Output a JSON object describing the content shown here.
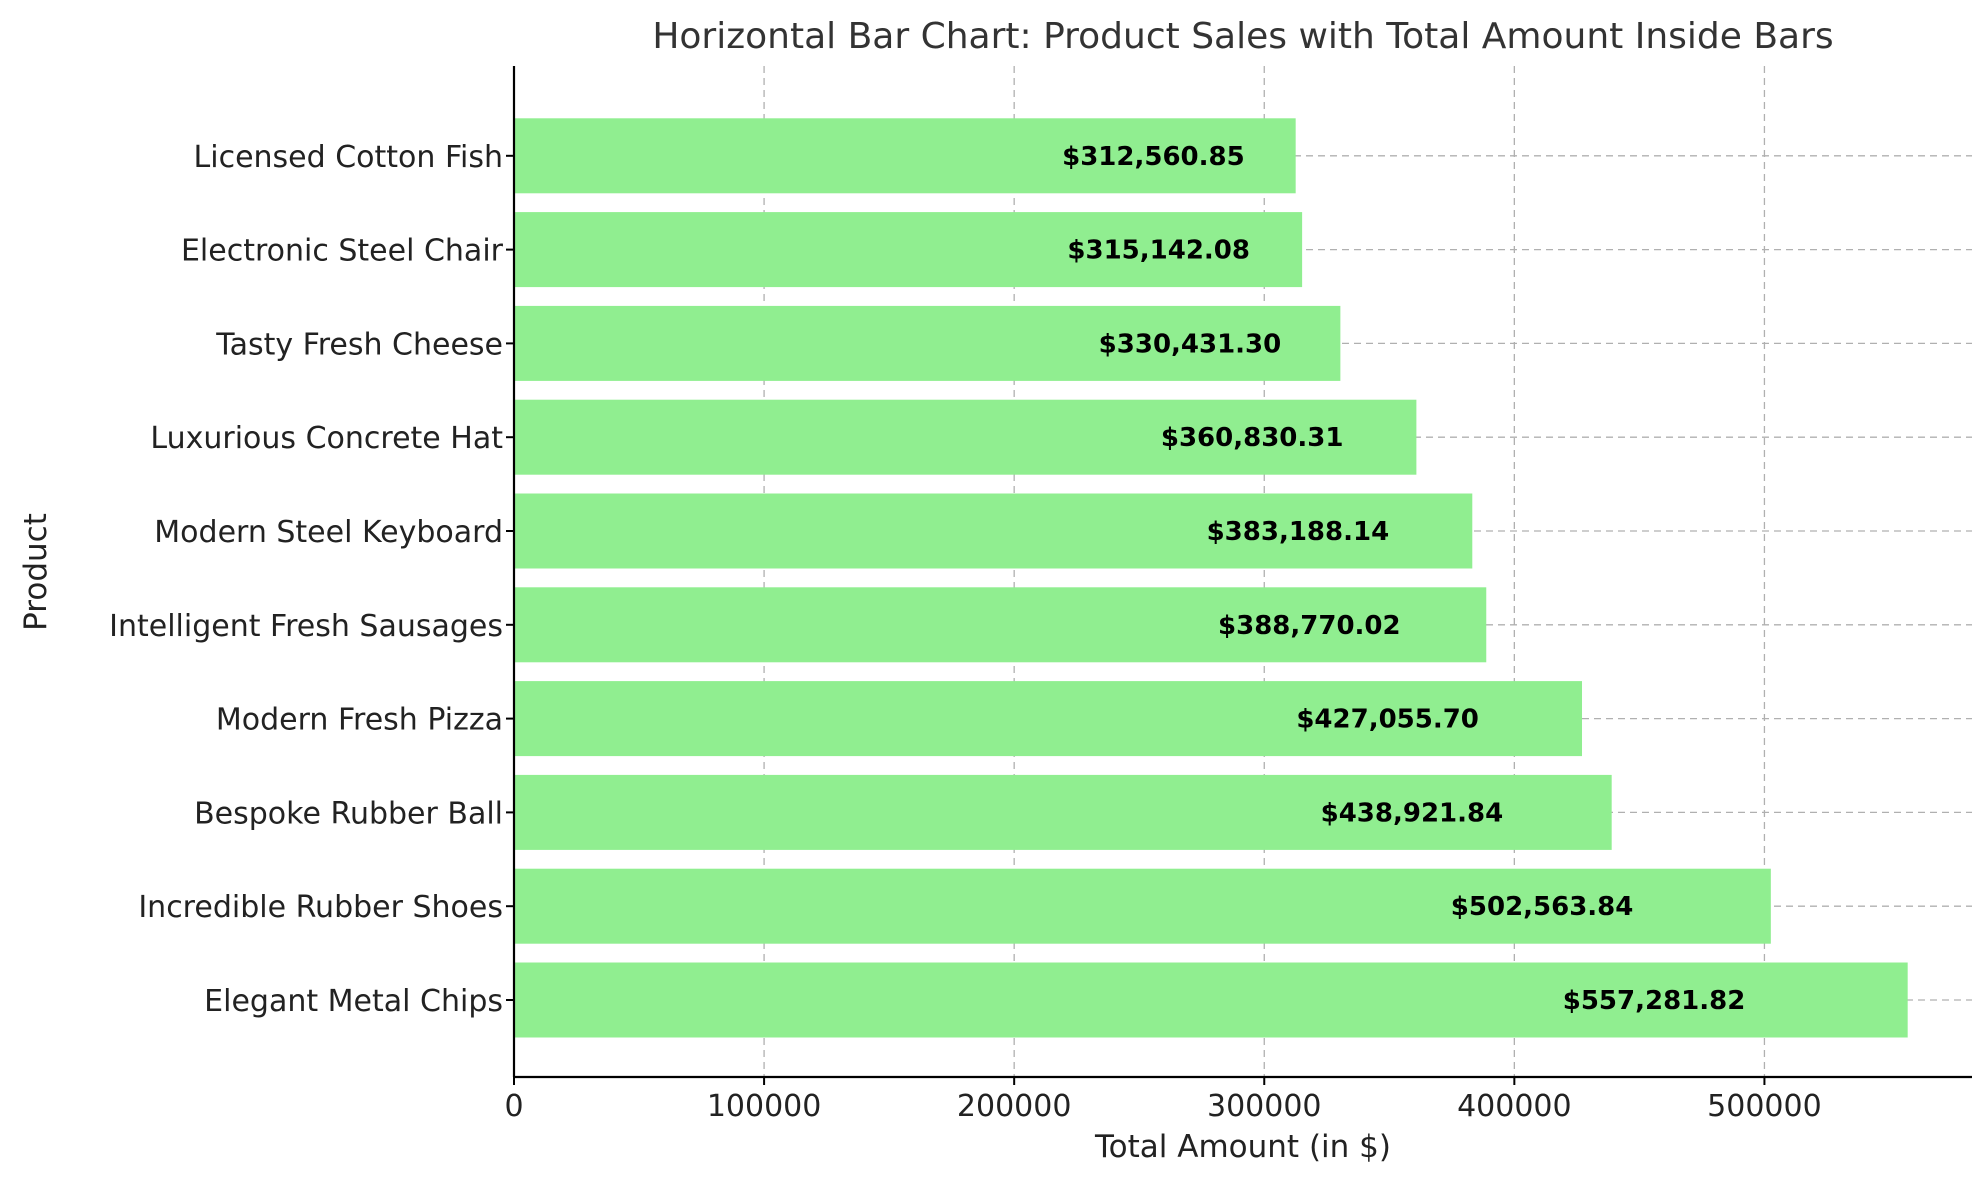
{
  "colors": {
    "bar": "#90ee90",
    "title": "#333333",
    "grid": "#b0b0b0",
    "axis": "#000000",
    "bar_label": "#000000"
  },
  "chart_data": {
    "type": "bar",
    "orientation": "horizontal",
    "title": "Horizontal Bar Chart: Product Sales with Total Amount Inside Bars",
    "xlabel": "Total Amount (in $)",
    "ylabel": "Product",
    "xlim": [
      0,
      583000
    ],
    "xticks": [
      0,
      100000,
      200000,
      300000,
      400000,
      500000
    ],
    "xtick_labels": [
      "0",
      "100000",
      "200000",
      "300000",
      "400000",
      "500000"
    ],
    "grid": true,
    "categories": [
      "Elegant Metal Chips",
      "Incredible Rubber Shoes",
      "Bespoke Rubber Ball",
      "Modern Fresh Pizza",
      "Intelligent Fresh Sausages",
      "Modern Steel Keyboard",
      "Luxurious Concrete Hat",
      "Tasty Fresh Cheese",
      "Electronic Steel Chair",
      "Licensed Cotton Fish"
    ],
    "values": [
      557281.82,
      502563.84,
      438921.84,
      427055.7,
      388770.02,
      383188.14,
      360830.31,
      330431.3,
      315142.08,
      312560.85
    ],
    "value_labels": [
      "$557,281.82",
      "$502,563.84",
      "$438,921.84",
      "$427,055.70",
      "$388,770.02",
      "$383,188.14",
      "$360,830.31",
      "$330,431.30",
      "$315,142.08",
      "$312,560.85"
    ]
  }
}
